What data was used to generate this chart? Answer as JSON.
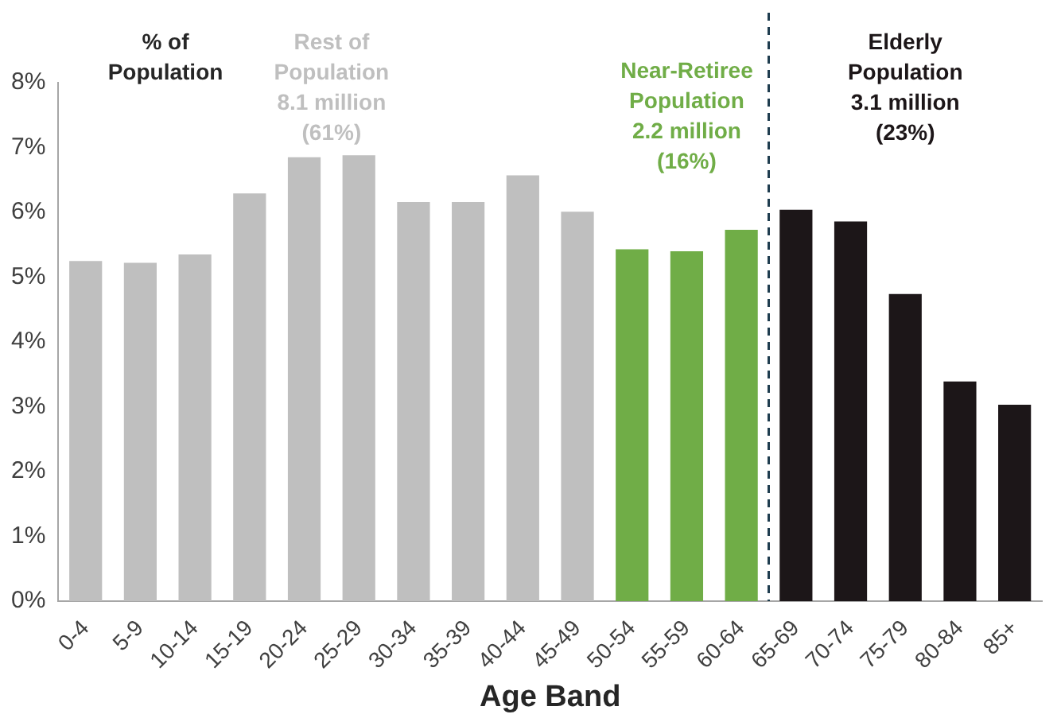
{
  "chart_data": {
    "type": "bar",
    "xlabel": "Age Band",
    "ylabel": "% of Population",
    "categories": [
      "0-4",
      "5-9",
      "10-14",
      "15-19",
      "20-24",
      "25-29",
      "30-34",
      "35-39",
      "40-44",
      "45-49",
      "50-54",
      "55-59",
      "60-64",
      "65-69",
      "70-74",
      "75-79",
      "80-84",
      "85+"
    ],
    "series": [
      {
        "name": "Rest of Population 8.1 million (61%)",
        "color": "#bfbfbf",
        "values": [
          5.25,
          5.22,
          5.35,
          6.29,
          6.85,
          6.88,
          6.16,
          6.16,
          6.57,
          6.01,
          null,
          null,
          null,
          null,
          null,
          null,
          null,
          null
        ]
      },
      {
        "name": "Near-Retiree Population 2.2 million (16%)",
        "color": "#70ad47",
        "values": [
          null,
          null,
          null,
          null,
          null,
          null,
          null,
          null,
          null,
          null,
          5.43,
          5.4,
          5.73,
          null,
          null,
          null,
          null,
          null
        ]
      },
      {
        "name": "Elderly Population 3.1 million (23%)",
        "color": "#1c1618",
        "values": [
          null,
          null,
          null,
          null,
          null,
          null,
          null,
          null,
          null,
          null,
          null,
          null,
          null,
          6.04,
          5.86,
          4.74,
          3.39,
          3.03
        ]
      }
    ],
    "ylim": [
      0,
      8
    ],
    "yticks": [
      {
        "value": 0,
        "label": "0%"
      },
      {
        "value": 1,
        "label": "1%"
      },
      {
        "value": 2,
        "label": "2%"
      },
      {
        "value": 3,
        "label": "3%"
      },
      {
        "value": 4,
        "label": "4%"
      },
      {
        "value": 5,
        "label": "5%"
      },
      {
        "value": 6,
        "label": "6%"
      },
      {
        "value": 7,
        "label": "7%"
      },
      {
        "value": 8,
        "label": "8%"
      }
    ],
    "ref_lines": [
      {
        "axis": "x",
        "value": "65-69",
        "color": "#1f3d4f",
        "line_style": "dashed"
      }
    ],
    "grid": false,
    "legend": false
  }
}
